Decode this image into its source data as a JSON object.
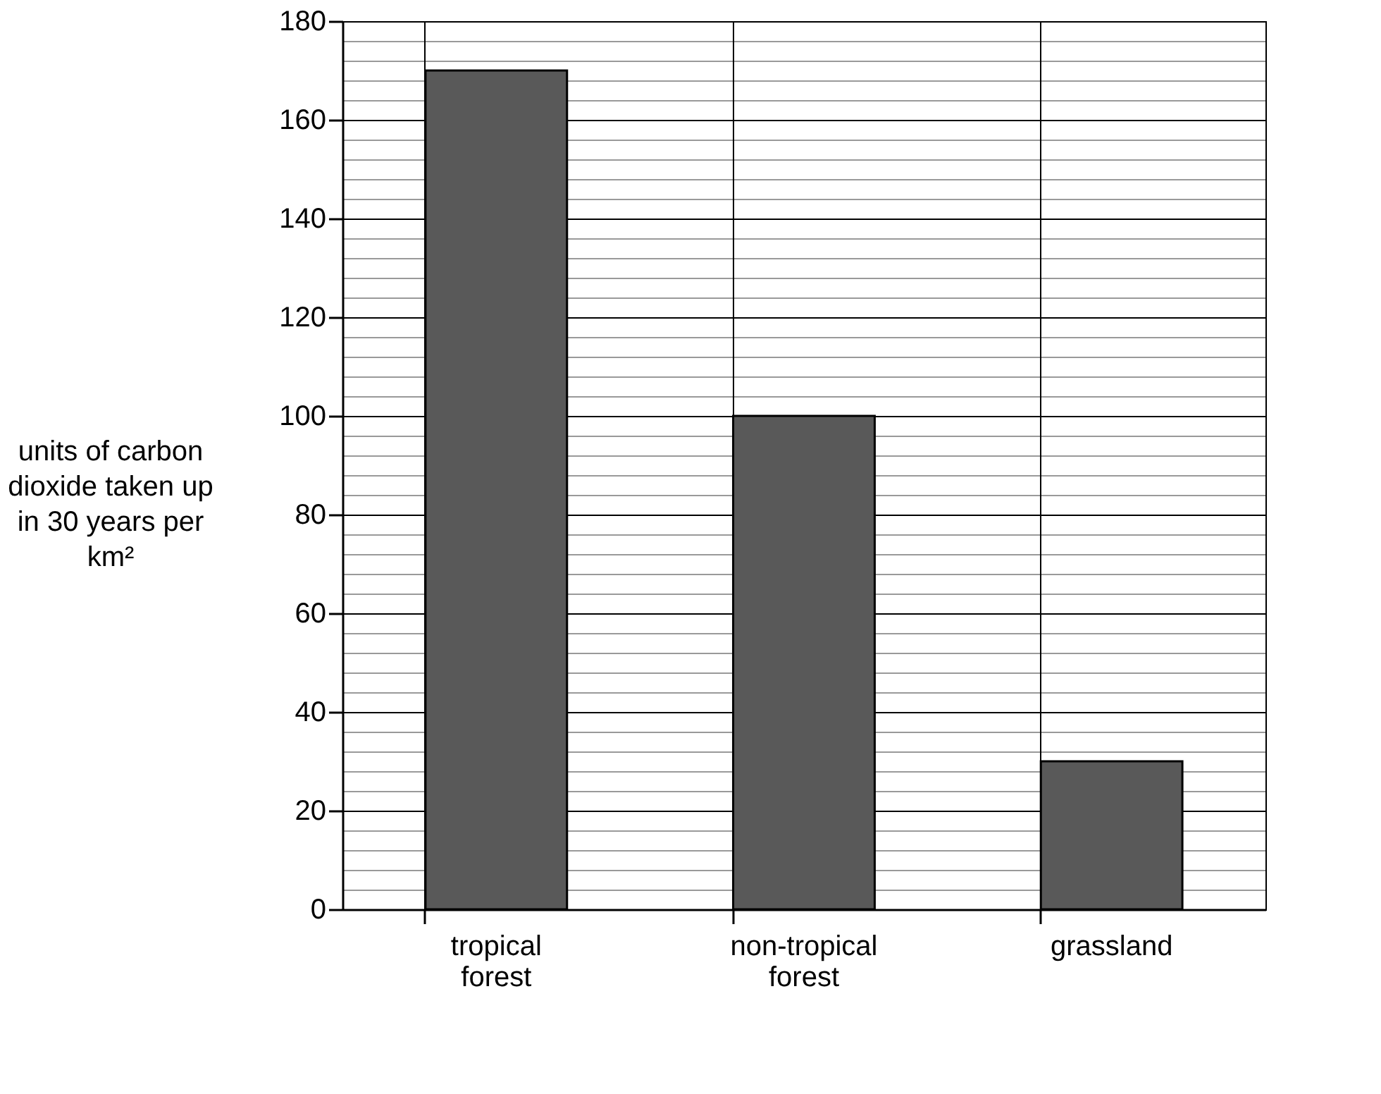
{
  "chart_data": {
    "type": "bar",
    "ylabel": "units of carbon dioxide taken up in 30 years per km²",
    "categories": [
      "tropical forest",
      "non-tropical forest",
      "grassland"
    ],
    "values": [
      170,
      100,
      30
    ],
    "color": "#595959",
    "ylim": [
      0,
      180
    ],
    "yticks": [
      0,
      20,
      40,
      60,
      80,
      100,
      120,
      140,
      160,
      180
    ],
    "grid": true
  }
}
